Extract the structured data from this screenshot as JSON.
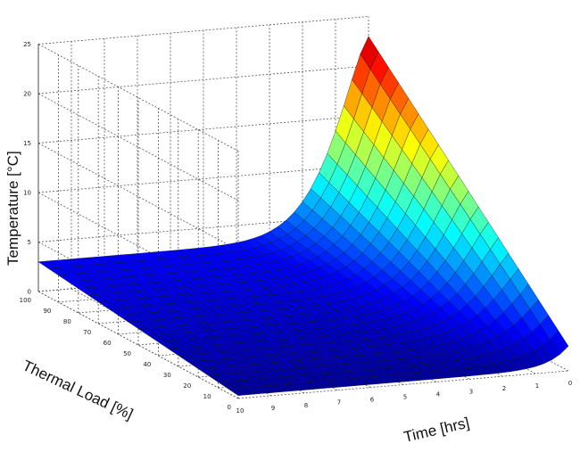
{
  "chart_data": {
    "type": "surface",
    "zlabel": "Temperature [°C]",
    "xlabel": "Time  [hrs]",
    "ylabel": "Thermal Load [%]",
    "z_ticks": [
      "0",
      "5",
      "10",
      "15",
      "20",
      "25"
    ],
    "time_ticks": [
      "10",
      "9",
      "8",
      "7",
      "6",
      "5",
      "4",
      "3",
      "2",
      "1",
      "0"
    ],
    "load_ticks": [
      "100",
      "90",
      "80",
      "70",
      "60",
      "50",
      "40",
      "30",
      "20",
      "10",
      "0"
    ],
    "zlim": [
      0,
      25
    ],
    "xlim": [
      0,
      10
    ],
    "ylim": [
      0,
      100
    ],
    "grid": true,
    "colormap": "jet",
    "colormap_stops": [
      "#00008f",
      "#0000ff",
      "#0080ff",
      "#00ffff",
      "#80ff80",
      "#ffff00",
      "#ff8000",
      "#ff0000",
      "#800000"
    ],
    "surface_values": {
      "description_rows": "Temperature rises steeply as time approaches 0 and thermal load approaches 100",
      "peak_temperature": 25,
      "baseline_temperature": 3,
      "peak_at": {
        "time": 0,
        "load": 100
      },
      "corner_time0_load0": 2,
      "corner_time10_load0": 0,
      "corner_time10_load100": 3
    }
  }
}
